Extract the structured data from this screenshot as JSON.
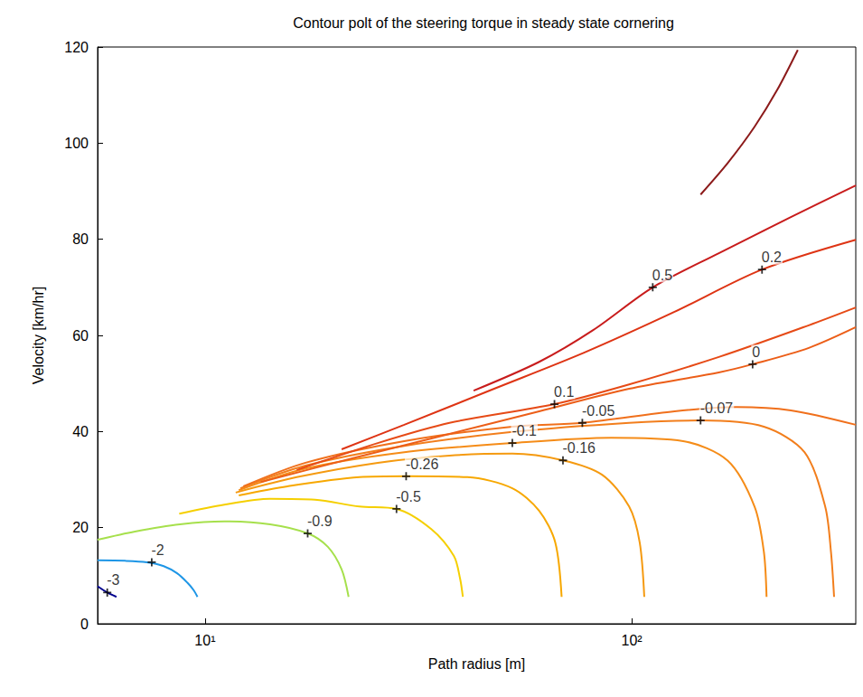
{
  "chart_data": {
    "type": "line",
    "title": "Contour polt of the steering torque in steady state cornering",
    "x_label": "Path radius [m]",
    "y_label": "Velocity [km/hr]",
    "log": "x",
    "grid": false,
    "xlim": [
      5.6,
      335
    ],
    "xticks": [
      {
        "value": 10,
        "label": "10¹"
      },
      {
        "value": 100,
        "label": "10²"
      }
    ],
    "ylim": [
      0,
      120
    ],
    "yticks": [
      0,
      20,
      40,
      60,
      80,
      100,
      120
    ],
    "series": [
      {
        "color": "#00008f",
        "x": [
          5.6,
          5.9,
          6.2
        ],
        "values": [
          7.8,
          6.5,
          5.6
        ]
      },
      {
        "color": "#1e96e6",
        "x": [
          5.6,
          6.5,
          7.3,
          8.0,
          8.6,
          9.1,
          9.4,
          9.6
        ],
        "values": [
          13.2,
          13.1,
          12.8,
          12.0,
          10.5,
          8.5,
          7.0,
          5.6
        ]
      },
      {
        "color": "#a6e04c",
        "x": [
          5.6,
          6.85,
          8.73,
          11.1,
          14.2,
          17.4,
          19.4,
          20.9,
          21.7
        ],
        "values": [
          17.5,
          19.2,
          20.7,
          21.3,
          20.7,
          18.8,
          16.0,
          11.3,
          5.6
        ]
      },
      {
        "color": "#f5cf00",
        "x": [
          8.7,
          11.1,
          14.2,
          18.1,
          23,
          28.1,
          33.9,
          38.3,
          39.6,
          40.2
        ],
        "values": [
          22.9,
          24.8,
          26.0,
          25.8,
          24.4,
          23.9,
          19.7,
          14.1,
          9.4,
          5.6
        ]
      },
      {
        "color": "#f7a800",
        "x": [
          12,
          15.6,
          23,
          29.6,
          41.2,
          52.5,
          60.7,
          66.2,
          68.5
        ],
        "values": [
          26.7,
          28.6,
          30.5,
          30.7,
          30.5,
          28.2,
          23.5,
          16.9,
          5.6
        ]
      },
      {
        "color": "#f59a10",
        "x": [
          11.8,
          16.4,
          25.4,
          37.4,
          52.5,
          69,
          85.2,
          98.6,
          104.4,
          107
        ],
        "values": [
          27.3,
          30.5,
          33.5,
          35.0,
          35.4,
          34.0,
          31.0,
          24.4,
          16.9,
          5.6
        ]
      },
      {
        "color": "#f58c18",
        "x": [
          12,
          17.2,
          29.3,
          52.5,
          89.5,
          132,
          168,
          194,
          204,
          207
        ],
        "values": [
          27.8,
          32.3,
          35.7,
          37.6,
          38.7,
          38.0,
          33.9,
          24.4,
          15.0,
          5.6
        ]
      },
      {
        "color": "#f27e1c",
        "x": [
          12.1,
          17.2,
          29.3,
          52.5,
          98.6,
          145,
          204,
          254,
          284,
          293,
          298
        ],
        "values": [
          28.2,
          32.9,
          37.0,
          39.9,
          41.8,
          42.3,
          41.0,
          35.7,
          24.4,
          15.0,
          5.6
        ]
      },
      {
        "color": "#f0701c",
        "x": [
          12.3,
          17.2,
          29.3,
          52.5,
          76.6,
          126,
          176,
          236,
          335
        ],
        "values": [
          28.6,
          33.5,
          38.0,
          41.0,
          41.8,
          44.2,
          45.1,
          44.4,
          41.4
        ]
      },
      {
        "color": "#ec5e18",
        "x": [
          13.5,
          23,
          37.4,
          60.7,
          98.6,
          160,
          192,
          260,
          335
        ],
        "values": [
          29.5,
          34.8,
          39.5,
          44.2,
          48.9,
          52.3,
          54.0,
          57.4,
          61.7
        ]
      },
      {
        "color": "#e64a16",
        "x": [
          16.4,
          25.4,
          37.4,
          65.9,
          98.6,
          160,
          260,
          335
        ],
        "values": [
          32.0,
          37.6,
          41.8,
          45.7,
          49.8,
          55.5,
          62.1,
          65.8
        ]
      },
      {
        "color": "#de3414",
        "x": [
          20.9,
          29.3,
          47.6,
          77.3,
          126,
          202,
          335
        ],
        "values": [
          36.3,
          41.4,
          48.9,
          56.4,
          64.9,
          73.7,
          79.9
        ]
      },
      {
        "color": "#c81c1c",
        "x": [
          42.6,
          60.7,
          81.2,
          112,
          160,
          236,
          335
        ],
        "values": [
          48.5,
          54.5,
          61.1,
          70.0,
          77.1,
          84.6,
          91.2
        ]
      },
      {
        "color": "#8c1a1a",
        "x": [
          145,
          168,
          194,
          219,
          245
        ],
        "values": [
          89.3,
          95.9,
          103.4,
          111.0,
          119.4
        ]
      }
    ],
    "annotations": [
      {
        "text": "-3",
        "x": 5.9,
        "y": 6.5
      },
      {
        "text": "-2",
        "x": 7.5,
        "y": 12.8
      },
      {
        "text": "-0.9",
        "x": 17.4,
        "y": 18.8
      },
      {
        "text": "-0.5",
        "x": 28.1,
        "y": 23.9
      },
      {
        "text": "-0.26",
        "x": 29.6,
        "y": 30.7
      },
      {
        "text": "-0.16",
        "x": 69,
        "y": 34.0
      },
      {
        "text": "-0.1",
        "x": 52.5,
        "y": 37.6
      },
      {
        "text": "-0.07",
        "x": 145,
        "y": 42.3
      },
      {
        "text": "-0.05",
        "x": 76.6,
        "y": 41.8
      },
      {
        "text": "0",
        "x": 192,
        "y": 54.0
      },
      {
        "text": "0.1",
        "x": 65.9,
        "y": 45.7
      },
      {
        "text": "0.2",
        "x": 202,
        "y": 73.7
      },
      {
        "text": "0.5",
        "x": 112,
        "y": 70.0
      }
    ]
  }
}
